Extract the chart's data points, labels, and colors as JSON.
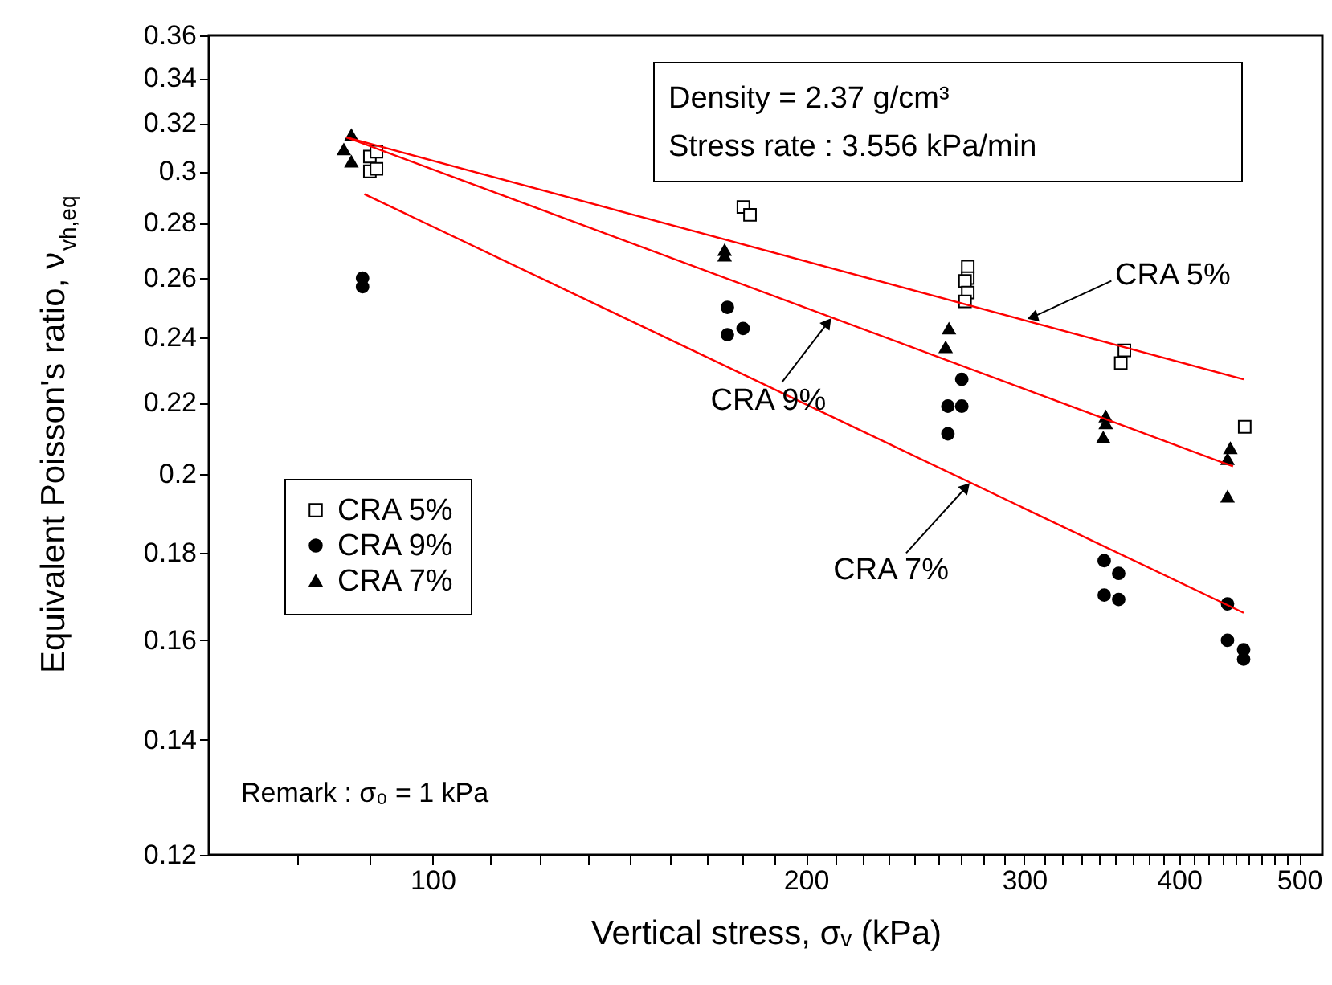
{
  "chart_data": {
    "type": "scatter",
    "xlabel": "Vertical stress, σᵥ (kPa)",
    "ylabel": "Equivalent Poisson's ratio, ν$_{vh,eq}$",
    "log": "xy",
    "grid": false,
    "legend": "left",
    "xlim": [
      66,
      522
    ],
    "ylim": [
      0.12,
      0.36
    ],
    "xticks": [
      {
        "value": 77.8,
        "label": null
      },
      {
        "value": 88.9,
        "label": null
      },
      100,
      {
        "value": 111.1,
        "label": null
      },
      {
        "value": 122.2,
        "label": null
      },
      {
        "value": 133.3,
        "label": null
      },
      {
        "value": 144.4,
        "label": null
      },
      {
        "value": 155.6,
        "label": null
      },
      {
        "value": 166.7,
        "label": null
      },
      {
        "value": 177.8,
        "label": null
      },
      {
        "value": 188.9,
        "label": null
      },
      200,
      {
        "value": 211.1,
        "label": null
      },
      {
        "value": 222.2,
        "label": null
      },
      {
        "value": 233.3,
        "label": null
      },
      {
        "value": 244.4,
        "label": null
      },
      {
        "value": 255.6,
        "label": null
      },
      {
        "value": 266.7,
        "label": null
      },
      {
        "value": 277.8,
        "label": null
      },
      {
        "value": 288.9,
        "label": null
      },
      300,
      {
        "value": 311.1,
        "label": null
      },
      {
        "value": 322.2,
        "label": null
      },
      {
        "value": 333.3,
        "label": null
      },
      {
        "value": 344.4,
        "label": null
      },
      {
        "value": 355.6,
        "label": null
      },
      {
        "value": 366.7,
        "label": null
      },
      {
        "value": 377.8,
        "label": null
      },
      {
        "value": 388.9,
        "label": null
      },
      400,
      {
        "value": 411.1,
        "label": null
      },
      {
        "value": 422.2,
        "label": null
      },
      {
        "value": 433.3,
        "label": null
      },
      {
        "value": 444.4,
        "label": null
      },
      {
        "value": 455.6,
        "label": null
      },
      {
        "value": 466.7,
        "label": null
      },
      {
        "value": 477.8,
        "label": null
      },
      {
        "value": 488.9,
        "label": null
      },
      500
    ],
    "yticks": [
      0.12,
      0.14,
      0.16,
      0.18,
      0.2,
      0.22,
      0.24,
      0.26,
      0.28,
      0.3,
      0.32,
      0.34,
      0.36
    ],
    "series": [
      {
        "name": "CRA 5%",
        "marker": "square",
        "color": "#ffffff",
        "x": [
          89.0,
          90.1,
          89.0,
          90.1,
          178.1,
          180.3,
          270.2,
          270.2,
          268.8,
          270.2,
          268.8,
          361.4,
          359.0,
          451.9
        ],
        "values": [
          0.306,
          0.308,
          0.3,
          0.301,
          0.286,
          0.283,
          0.264,
          0.26,
          0.259,
          0.255,
          0.252,
          0.236,
          0.232,
          0.213
        ]
      },
      {
        "name": "CRA 9%",
        "marker": "circle",
        "color": "#000000",
        "x": [
          87.8,
          87.8,
          172.9,
          172.9,
          178.0,
          267.2,
          260.4,
          267.2,
          260.4,
          348.1,
          357.6,
          348.1,
          357.6,
          437.7,
          437.7,
          451.0,
          451.0
        ],
        "values": [
          0.26,
          0.257,
          0.25,
          0.241,
          0.243,
          0.227,
          0.219,
          0.219,
          0.211,
          0.178,
          0.175,
          0.17,
          0.169,
          0.168,
          0.16,
          0.158,
          0.156
        ]
      },
      {
        "name": "CRA 7%",
        "marker": "triangle",
        "color": "#000000",
        "x": [
          86.0,
          84.8,
          86.0,
          172.0,
          172.0,
          260.9,
          259.3,
          349.1,
          349.1,
          347.5,
          440.0,
          437.7,
          437.7
        ],
        "values": [
          0.315,
          0.309,
          0.304,
          0.27,
          0.268,
          0.243,
          0.237,
          0.216,
          0.214,
          0.21,
          0.207,
          0.204,
          0.194
        ]
      },
      {
        "type": "line",
        "color": "#ff0000",
        "x": [
          85.2,
          451.0
        ],
        "values": [
          0.314,
          0.227
        ]
      },
      {
        "type": "line",
        "color": "#ff0000",
        "x": [
          85.2,
          442.2
        ],
        "values": [
          0.314,
          0.202
        ]
      },
      {
        "type": "line",
        "color": "#ff0000",
        "x": [
          88.1,
          451.0
        ],
        "values": [
          0.291,
          0.166
        ]
      }
    ],
    "annotations": [
      {
        "text": "CRA 5%",
        "x": 300.5,
        "y": 0.246
      },
      {
        "text": "CRA 9%",
        "x": 210.2,
        "y": 0.247
      },
      {
        "text": "CRA 7%",
        "x": 272.0,
        "y": 0.198
      },
      "Density = 2.37 g/cm³",
      "Stress rate : 3.556 kPa/min",
      "Remark : σ₀ = 1 kPa"
    ]
  }
}
